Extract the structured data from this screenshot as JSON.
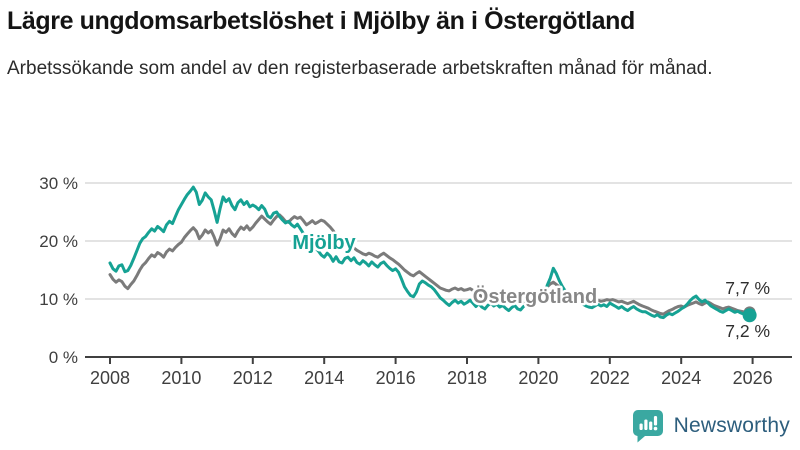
{
  "header": {
    "title": "Lägre ungdomsarbetslöshet i Mjölby än i Östergötland",
    "subtitle": "Arbetssökande som andel av den registerbaserade arbetskraften månad för månad."
  },
  "footer": {
    "brand": "Newsworthy",
    "logo_icon": "speech-bubble-bar-chart-icon",
    "logo_color": "#3aa8a1",
    "text_color": "#2d5e7d"
  },
  "colors": {
    "mjolby": "#16a294",
    "ostergotland": "#7b7b7b",
    "ostergotland_label": "#878787",
    "axis_text": "#3f3f3f",
    "axis_line": "#404040",
    "gridline": "#dadada",
    "annotation_text": "#2e2e2e"
  },
  "chart_data": {
    "type": "line",
    "unit": "%",
    "title": "",
    "xlabel": "",
    "ylabel": "",
    "x_start_year": 2008,
    "points_per_month": 1,
    "x_tick_years": [
      "2008",
      "2010",
      "2012",
      "2014",
      "2016",
      "2018",
      "2020",
      "2022",
      "2024",
      "2026"
    ],
    "y_ticks": [
      {
        "label": "30 %",
        "value": 30
      },
      {
        "label": "20 %",
        "value": 20
      },
      {
        "label": "10 %",
        "value": 10
      },
      {
        "label": "0 %",
        "value": 0
      }
    ],
    "ylim": [
      0,
      32
    ],
    "grid": "horizontal",
    "legend_position": "inline-labels",
    "annotations": [
      {
        "text": "7,7 %",
        "series": "Östergötland"
      },
      {
        "text": "7,2 %",
        "series": "Mjölby"
      }
    ],
    "series": [
      {
        "name": "Östergötland",
        "color": "#7b7b7b",
        "label_color": "#878787",
        "end_value": 7.7,
        "values": [
          14.2,
          13.4,
          12.9,
          13.3,
          13.0,
          12.2,
          11.8,
          12.5,
          13.1,
          14.0,
          15.0,
          15.8,
          16.3,
          17.0,
          17.6,
          17.3,
          18.0,
          17.7,
          17.2,
          18.1,
          18.6,
          18.3,
          18.9,
          19.4,
          19.8,
          20.6,
          21.2,
          21.8,
          22.3,
          21.7,
          20.4,
          21.0,
          21.9,
          21.4,
          21.8,
          20.7,
          19.3,
          20.4,
          21.9,
          21.5,
          22.1,
          21.3,
          20.8,
          21.7,
          22.4,
          22.0,
          22.6,
          21.9,
          22.4,
          23.1,
          23.7,
          24.3,
          23.8,
          23.3,
          22.9,
          23.6,
          24.2,
          24.5,
          24.0,
          23.4,
          23.2,
          23.8,
          24.2,
          23.9,
          24.1,
          23.5,
          22.8,
          23.1,
          23.5,
          23.0,
          23.3,
          23.6,
          23.4,
          22.9,
          22.4,
          21.8,
          21.0,
          20.2,
          19.7,
          20.3,
          20.0,
          19.4,
          18.8,
          18.4,
          18.1,
          17.8,
          17.6,
          17.9,
          17.7,
          17.4,
          17.2,
          17.6,
          17.9,
          17.5,
          17.1,
          16.8,
          16.4,
          16.0,
          15.5,
          15.0,
          14.6,
          14.2,
          14.0,
          14.4,
          14.7,
          14.3,
          13.9,
          13.5,
          13.1,
          12.7,
          12.3,
          11.9,
          11.7,
          11.5,
          11.4,
          11.7,
          11.9,
          11.6,
          11.8,
          11.5,
          11.6,
          11.8,
          11.5,
          11.2,
          10.8,
          10.4,
          10.1,
          10.4,
          10.6,
          10.2,
          10.0,
          9.8,
          9.9,
          10.1,
          9.8,
          9.5,
          9.7,
          9.4,
          9.2,
          9.5,
          9.7,
          9.4,
          9.6,
          9.8,
          10.2,
          10.5,
          11.3,
          12.1,
          12.6,
          12.9,
          12.5,
          12.1,
          11.7,
          11.3,
          10.9,
          10.6,
          10.4,
          10.2,
          10.0,
          9.8,
          9.7,
          9.5,
          9.4,
          9.6,
          9.8,
          9.6,
          9.7,
          9.9,
          9.8,
          9.9,
          9.7,
          9.5,
          9.6,
          9.4,
          9.2,
          9.4,
          9.6,
          9.3,
          9.0,
          8.8,
          8.6,
          8.4,
          8.1,
          7.9,
          7.7,
          7.5,
          7.4,
          7.7,
          8.0,
          8.2,
          8.5,
          8.7,
          8.8,
          8.6,
          8.9,
          9.1,
          9.3,
          9.5,
          9.2,
          9.0,
          9.3,
          9.5,
          9.2,
          8.9,
          8.7,
          8.5,
          8.3,
          8.5,
          8.6,
          8.4,
          8.2,
          8.0,
          7.9,
          7.8,
          7.7,
          7.7
        ]
      },
      {
        "name": "Mjölby",
        "color": "#16a294",
        "label_color": "#16a294",
        "end_value": 7.2,
        "values": [
          16.2,
          15.2,
          14.8,
          15.7,
          15.9,
          14.7,
          14.9,
          15.8,
          17.0,
          18.3,
          19.6,
          20.4,
          20.8,
          21.5,
          22.1,
          21.7,
          22.5,
          22.1,
          21.6,
          22.8,
          23.4,
          23.0,
          24.2,
          25.4,
          26.3,
          27.2,
          28.0,
          28.6,
          29.3,
          28.4,
          26.3,
          27.0,
          28.3,
          27.6,
          27.1,
          25.3,
          23.2,
          25.6,
          27.6,
          26.8,
          27.3,
          26.1,
          25.4,
          26.6,
          27.1,
          26.3,
          26.8,
          25.9,
          26.2,
          25.9,
          25.4,
          26.1,
          25.5,
          24.3,
          24.0,
          24.8,
          25.0,
          24.2,
          23.6,
          23.1,
          23.4,
          22.8,
          22.4,
          22.9,
          22.1,
          21.3,
          20.6,
          20.0,
          19.4,
          18.8,
          18.3,
          17.6,
          17.2,
          17.9,
          17.4,
          16.5,
          17.3,
          16.4,
          16.2,
          17.0,
          17.2,
          16.6,
          17.1,
          16.3,
          16.0,
          16.6,
          16.2,
          15.7,
          16.4,
          15.9,
          15.5,
          16.1,
          16.4,
          15.8,
          15.3,
          14.9,
          15.2,
          14.6,
          13.4,
          12.1,
          11.3,
          10.6,
          10.4,
          11.2,
          12.6,
          13.1,
          12.8,
          12.4,
          12.1,
          11.6,
          10.9,
          10.2,
          9.8,
          9.3,
          8.9,
          9.4,
          9.8,
          9.3,
          9.6,
          9.1,
          9.4,
          9.8,
          9.3,
          8.7,
          9.2,
          8.6,
          8.3,
          8.9,
          9.3,
          8.8,
          9.1,
          8.6,
          8.9,
          8.4,
          8.0,
          8.5,
          8.9,
          8.3,
          8.1,
          8.7,
          9.0,
          8.5,
          8.8,
          9.2,
          9.6,
          9.9,
          10.8,
          12.4,
          13.6,
          15.3,
          14.4,
          13.2,
          12.2,
          11.4,
          10.8,
          10.3,
          10.0,
          9.7,
          9.4,
          9.1,
          8.8,
          8.6,
          8.5,
          8.8,
          9.1,
          8.8,
          9.0,
          8.7,
          9.3,
          9.0,
          8.7,
          8.4,
          8.7,
          8.3,
          8.0,
          8.4,
          8.7,
          8.3,
          8.0,
          7.8,
          7.8,
          7.5,
          7.2,
          7.0,
          7.3,
          6.9,
          6.8,
          7.2,
          7.5,
          7.3,
          7.6,
          7.9,
          8.3,
          8.6,
          9.1,
          9.7,
          10.2,
          10.5,
          9.9,
          9.5,
          9.8,
          9.3,
          8.8,
          8.5,
          8.2,
          7.9,
          7.7,
          8.0,
          8.3,
          8.0,
          7.7,
          7.9,
          7.6,
          7.4,
          7.3,
          7.2
        ]
      }
    ]
  }
}
